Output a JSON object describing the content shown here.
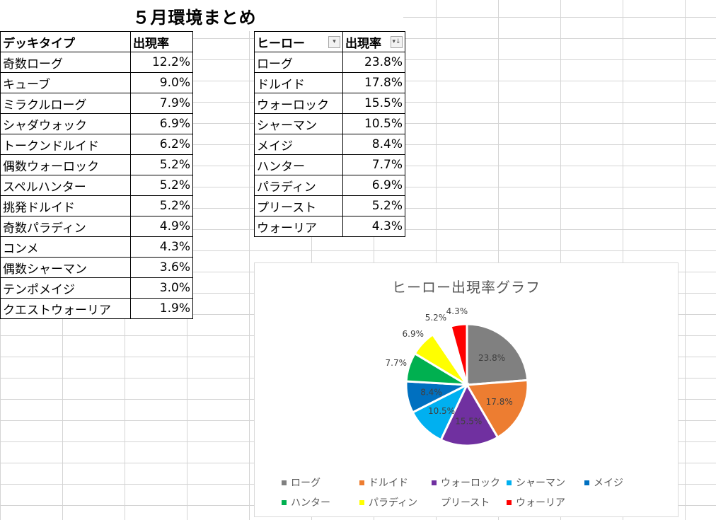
{
  "title": "５月環境まとめ",
  "deck_table": {
    "headers": [
      "デッキタイプ",
      "出現率"
    ],
    "rows": [
      [
        "奇数ローグ",
        "12.2%"
      ],
      [
        "キューブ",
        "9.0%"
      ],
      [
        "ミラクルローグ",
        "7.9%"
      ],
      [
        "シャダウォック",
        "6.9%"
      ],
      [
        "トークンドルイド",
        "6.2%"
      ],
      [
        "偶数ウォーロック",
        "5.2%"
      ],
      [
        "スペルハンター",
        "5.2%"
      ],
      [
        "挑発ドルイド",
        "5.2%"
      ],
      [
        "奇数パラディン",
        "4.9%"
      ],
      [
        "コンメ",
        "4.3%"
      ],
      [
        "偶数シャーマン",
        "3.6%"
      ],
      [
        "テンポメイジ",
        "3.0%"
      ],
      [
        "クエストウォーリア",
        "1.9%"
      ]
    ]
  },
  "hero_table": {
    "headers": [
      "ヒーロー",
      "出現率"
    ],
    "rows": [
      [
        "ローグ",
        "23.8%"
      ],
      [
        "ドルイド",
        "17.8%"
      ],
      [
        "ウォーロック",
        "15.5%"
      ],
      [
        "シャーマン",
        "10.5%"
      ],
      [
        "メイジ",
        "8.4%"
      ],
      [
        "ハンター",
        "7.7%"
      ],
      [
        "パラディン",
        "6.9%"
      ],
      [
        "プリースト",
        "5.2%"
      ],
      [
        "ウォーリア",
        "4.3%"
      ]
    ]
  },
  "chart_data": {
    "type": "pie",
    "title": "ヒーロー出現率グラフ",
    "categories": [
      "ローグ",
      "ドルイド",
      "ウォーロック",
      "シャーマン",
      "メイジ",
      "ハンター",
      "パラディン",
      "プリースト",
      "ウォーリア"
    ],
    "values": [
      23.8,
      17.8,
      15.5,
      10.5,
      8.4,
      7.7,
      6.9,
      5.2,
      4.3
    ],
    "labels": [
      "23.8%",
      "17.8%",
      "15.5%",
      "10.5%",
      "8.4%",
      "7.7%",
      "6.9%",
      "5.2%",
      "4.3%"
    ],
    "colors": [
      "#808080",
      "#ed7d31",
      "#7030a0",
      "#00b0f0",
      "#0070c0",
      "#00b050",
      "#ffff00",
      "#ffffff",
      "#ff0000"
    ],
    "legend_position": "bottom"
  }
}
